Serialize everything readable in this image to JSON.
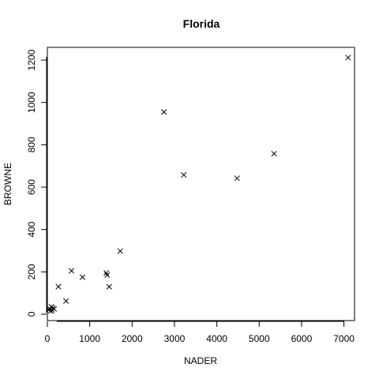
{
  "chart_data": {
    "type": "scatter",
    "title": "Florida",
    "xlabel": "NADER",
    "ylabel": "BROWNE",
    "xlim": [
      0,
      7250
    ],
    "ylim": [
      -30,
      1260
    ],
    "x_ticks": [
      0,
      1000,
      2000,
      3000,
      4000,
      5000,
      6000,
      7000
    ],
    "y_ticks": [
      0,
      200,
      400,
      600,
      800,
      1000,
      1200
    ],
    "marker": "x",
    "grid": false,
    "x": [
      40,
      60,
      80,
      95,
      110,
      130,
      160,
      260,
      440,
      570,
      830,
      1390,
      1410,
      1460,
      1720,
      2750,
      3220,
      4480,
      5350,
      7100
    ],
    "y": [
      20,
      25,
      15,
      35,
      20,
      30,
      25,
      130,
      62,
      205,
      175,
      195,
      185,
      130,
      298,
      955,
      658,
      642,
      758,
      1212
    ]
  }
}
